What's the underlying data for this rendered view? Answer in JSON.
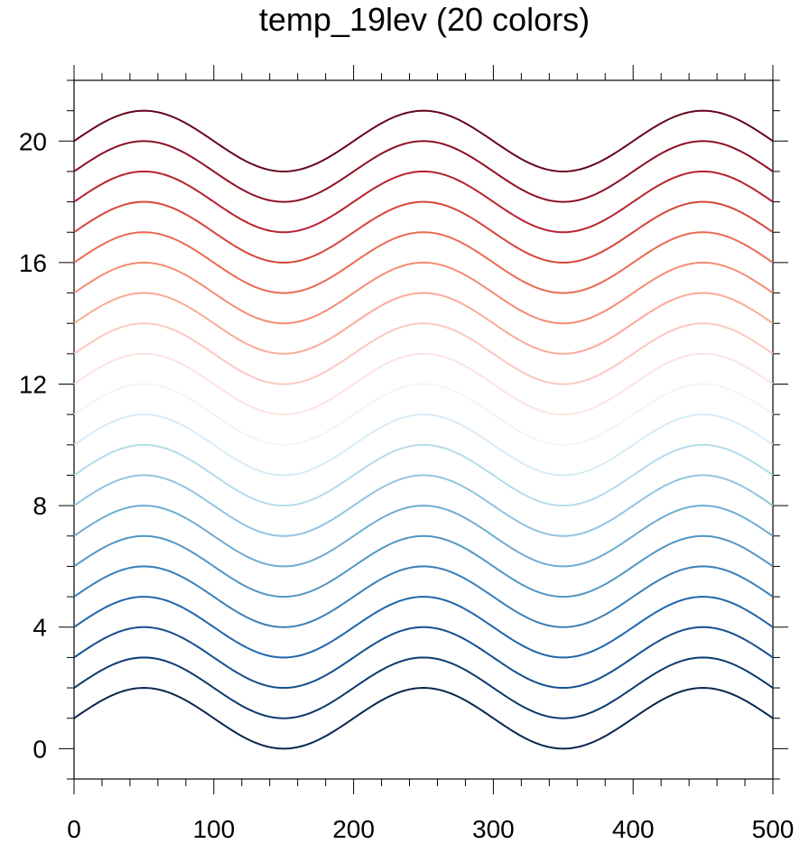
{
  "chart_data": {
    "type": "line",
    "title": "temp_19lev (20 colors)",
    "xlabel": "",
    "ylabel": "",
    "xlim": [
      0,
      500
    ],
    "ylim": [
      -1,
      22
    ],
    "x_ticks": [
      0,
      100,
      200,
      300,
      400,
      500
    ],
    "x_minor_step": 20,
    "y_ticks": [
      0,
      4,
      8,
      12,
      16,
      20
    ],
    "y_minor_step": 1,
    "curve": "y = offset + sin(2*pi*(x - 0)/200)",
    "wave_period": 200,
    "wave_amplitude": 1,
    "grid": false,
    "legend": "none",
    "series": [
      {
        "offset": 1,
        "color": "#08264d"
      },
      {
        "offset": 2,
        "color": "#0a3a6e"
      },
      {
        "offset": 3,
        "color": "#144f8f"
      },
      {
        "offset": 4,
        "color": "#2166ac"
      },
      {
        "offset": 5,
        "color": "#3a7fb8"
      },
      {
        "offset": 6,
        "color": "#5196c4"
      },
      {
        "offset": 7,
        "color": "#6fadd2"
      },
      {
        "offset": 8,
        "color": "#92c5de"
      },
      {
        "offset": 9,
        "color": "#b5dbeb"
      },
      {
        "offset": 10,
        "color": "#d6ecf7"
      },
      {
        "offset": 11,
        "color": "#eef6fc"
      },
      {
        "offset": 12,
        "color": "#fde3e1"
      },
      {
        "offset": 13,
        "color": "#fcc8c0"
      },
      {
        "offset": 14,
        "color": "#f9ab9a"
      },
      {
        "offset": 15,
        "color": "#f48c72"
      },
      {
        "offset": 16,
        "color": "#ea6b52"
      },
      {
        "offset": 17,
        "color": "#d6463b"
      },
      {
        "offset": 18,
        "color": "#b82331"
      },
      {
        "offset": 19,
        "color": "#8e1024"
      },
      {
        "offset": 20,
        "color": "#65051c"
      }
    ]
  }
}
